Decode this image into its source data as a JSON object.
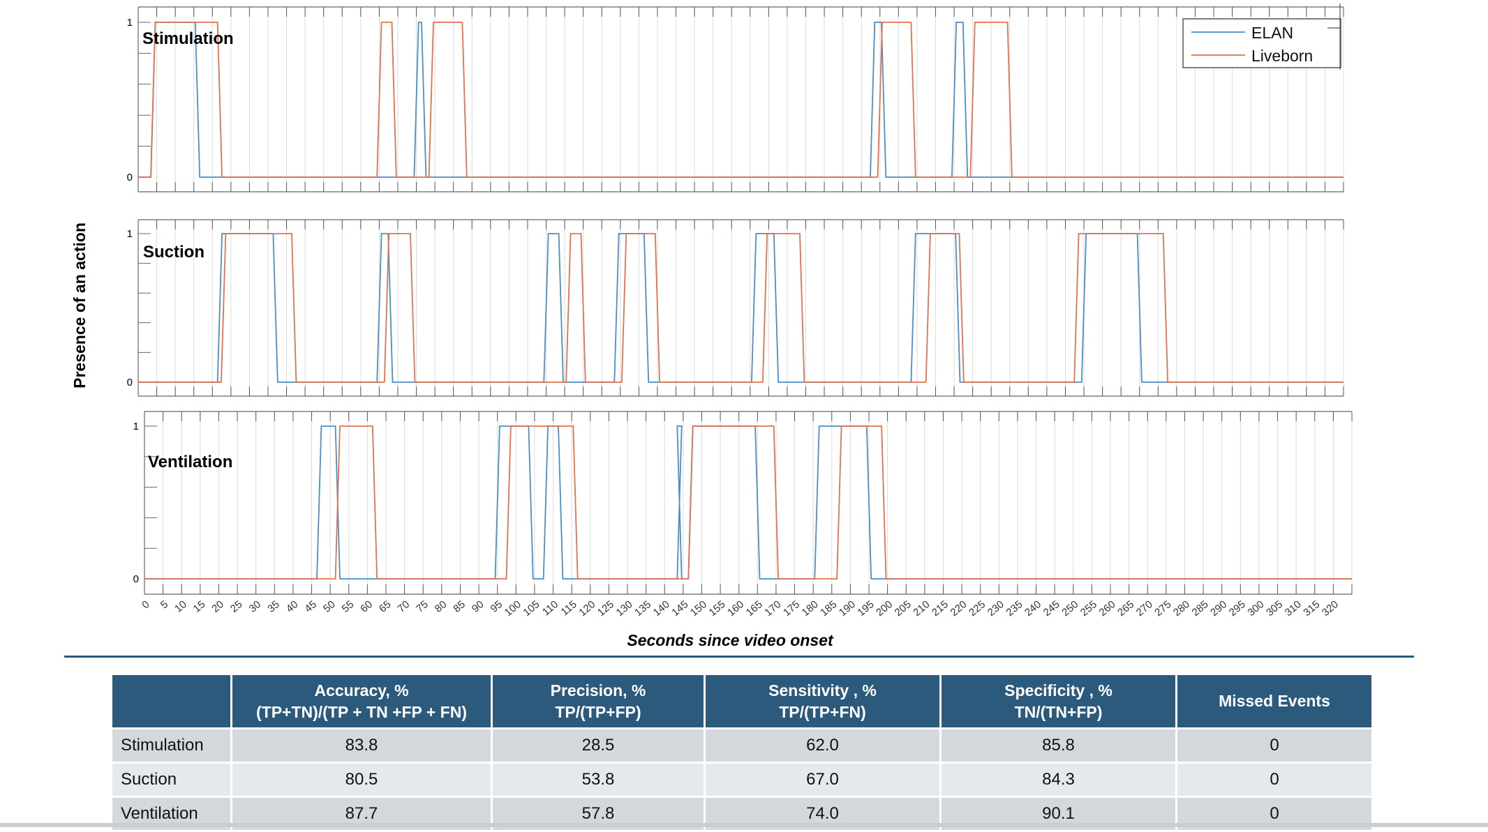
{
  "figure": {
    "ylabel": "Presence of an action",
    "xlabel": "Seconds since video onset",
    "legend": [
      "ELAN",
      "Liveborn"
    ],
    "colors": {
      "ELAN": "#4a8fc8",
      "Liveborn": "#e0734e",
      "grid": "#dcdcdc"
    }
  },
  "chart_data": [
    {
      "type": "line",
      "title": "Stimulation",
      "xlim": [
        0,
        325
      ],
      "ylim": [
        0,
        1
      ],
      "yticks": [
        0,
        1
      ],
      "x_step": 5,
      "legend_position": "top-right",
      "series": [
        {
          "name": "ELAN",
          "intervals": [
            [
              4,
              16
            ],
            [
              75,
              77
            ],
            [
              198,
              201
            ],
            [
              220,
              223
            ]
          ]
        },
        {
          "name": "Liveborn",
          "intervals": [
            [
              4,
              22
            ],
            [
              65,
              69
            ],
            [
              79,
              88
            ],
            [
              200,
              209
            ],
            [
              225,
              235
            ]
          ]
        }
      ]
    },
    {
      "type": "line",
      "title": "Suction",
      "xlim": [
        0,
        325
      ],
      "ylim": [
        0,
        1
      ],
      "yticks": [
        0,
        1
      ],
      "x_step": 5,
      "series": [
        {
          "name": "ELAN",
          "intervals": [
            [
              22,
              37
            ],
            [
              65,
              68
            ],
            [
              110,
              114
            ],
            [
              129,
              137
            ],
            [
              166,
              172
            ],
            [
              209,
              221
            ],
            [
              255,
              270
            ]
          ]
        },
        {
          "name": "Liveborn",
          "intervals": [
            [
              23,
              42
            ],
            [
              67,
              74
            ],
            [
              116,
              120
            ],
            [
              131,
              140
            ],
            [
              169,
              179
            ],
            [
              213,
              222
            ],
            [
              253,
              277
            ]
          ]
        }
      ]
    },
    {
      "type": "line",
      "title": "Ventilation",
      "xlim": [
        0,
        325
      ],
      "ylim": [
        0,
        1
      ],
      "yticks": [
        0,
        1
      ],
      "x_step": 5,
      "series": [
        {
          "name": "ELAN",
          "intervals": [
            [
              47,
              52
            ],
            [
              95,
              104
            ],
            [
              108,
              112
            ],
            [
              144,
              144
            ],
            [
              147,
              165
            ],
            [
              181,
              195
            ]
          ]
        },
        {
          "name": "Liveborn",
          "intervals": [
            [
              52,
              62
            ],
            [
              98,
              116
            ],
            [
              147,
              170
            ],
            [
              187,
              199
            ]
          ]
        }
      ]
    }
  ],
  "table": {
    "headers": [
      {
        "line1": "",
        "line2": ""
      },
      {
        "line1": "Accuracy, %",
        "line2": "(TP+TN)/(TP + TN +FP + FN)"
      },
      {
        "line1": "Precision, %",
        "line2": "TP/(TP+FP)"
      },
      {
        "line1": "Sensitivity , %",
        "line2": "TP/(TP+FN)"
      },
      {
        "line1": "Specificity , %",
        "line2": "TN/(TN+FP)"
      },
      {
        "line1": "Missed Events",
        "line2": ""
      }
    ],
    "rows": [
      [
        "Stimulation",
        "83.8",
        "28.5",
        "62.0",
        "85.8",
        "0"
      ],
      [
        "Suction",
        "80.5",
        "53.8",
        "67.0",
        "84.3",
        "0"
      ],
      [
        "Ventilation",
        "87.7",
        "57.8",
        "74.0",
        "90.1",
        "0"
      ]
    ]
  }
}
